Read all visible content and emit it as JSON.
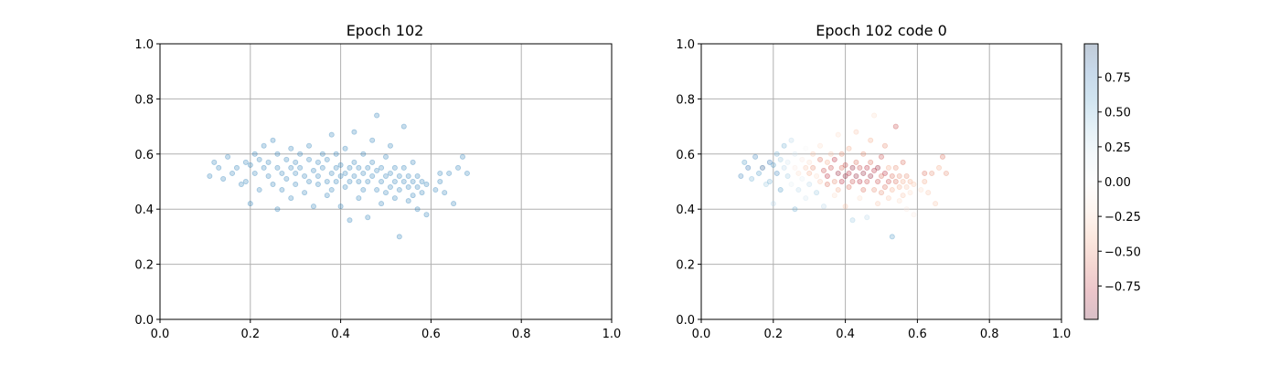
{
  "chart_data": [
    {
      "type": "scatter",
      "title": "Epoch 102",
      "xlim": [
        0,
        1
      ],
      "ylim": [
        0,
        1
      ],
      "xticks": [
        "0.0",
        "0.2",
        "0.4",
        "0.6",
        "0.8",
        "1.0"
      ],
      "yticks": [
        "0.0",
        "0.2",
        "0.4",
        "0.6",
        "0.8",
        "1.0"
      ],
      "grid": true,
      "marker_color": "#1f77b4",
      "marker_alpha": 0.25,
      "points": [
        [
          0.11,
          0.52
        ],
        [
          0.12,
          0.57
        ],
        [
          0.13,
          0.55
        ],
        [
          0.14,
          0.51
        ],
        [
          0.15,
          0.59
        ],
        [
          0.16,
          0.53
        ],
        [
          0.17,
          0.55
        ],
        [
          0.18,
          0.49
        ],
        [
          0.19,
          0.57
        ],
        [
          0.19,
          0.5
        ],
        [
          0.2,
          0.56
        ],
        [
          0.2,
          0.42
        ],
        [
          0.21,
          0.6
        ],
        [
          0.21,
          0.53
        ],
        [
          0.22,
          0.58
        ],
        [
          0.22,
          0.47
        ],
        [
          0.23,
          0.55
        ],
        [
          0.23,
          0.63
        ],
        [
          0.24,
          0.52
        ],
        [
          0.24,
          0.57
        ],
        [
          0.25,
          0.49
        ],
        [
          0.25,
          0.65
        ],
        [
          0.26,
          0.55
        ],
        [
          0.26,
          0.6
        ],
        [
          0.26,
          0.4
        ],
        [
          0.27,
          0.53
        ],
        [
          0.27,
          0.47
        ],
        [
          0.28,
          0.58
        ],
        [
          0.28,
          0.51
        ],
        [
          0.29,
          0.55
        ],
        [
          0.29,
          0.62
        ],
        [
          0.29,
          0.44
        ],
        [
          0.3,
          0.53
        ],
        [
          0.3,
          0.57
        ],
        [
          0.3,
          0.49
        ],
        [
          0.31,
          0.6
        ],
        [
          0.31,
          0.55
        ],
        [
          0.32,
          0.52
        ],
        [
          0.32,
          0.46
        ],
        [
          0.33,
          0.58
        ],
        [
          0.33,
          0.5
        ],
        [
          0.33,
          0.63
        ],
        [
          0.34,
          0.54
        ],
        [
          0.34,
          0.41
        ],
        [
          0.35,
          0.57
        ],
        [
          0.35,
          0.49
        ],
        [
          0.35,
          0.52
        ],
        [
          0.36,
          0.6
        ],
        [
          0.36,
          0.55
        ],
        [
          0.37,
          0.5
        ],
        [
          0.37,
          0.45
        ],
        [
          0.37,
          0.58
        ],
        [
          0.38,
          0.53
        ],
        [
          0.38,
          0.47
        ],
        [
          0.38,
          0.67
        ],
        [
          0.39,
          0.55
        ],
        [
          0.39,
          0.5
        ],
        [
          0.39,
          0.6
        ],
        [
          0.4,
          0.52
        ],
        [
          0.4,
          0.56
        ],
        [
          0.4,
          0.41
        ],
        [
          0.41,
          0.53
        ],
        [
          0.41,
          0.48
        ],
        [
          0.41,
          0.62
        ],
        [
          0.42,
          0.55
        ],
        [
          0.42,
          0.5
        ],
        [
          0.42,
          0.36
        ],
        [
          0.43,
          0.57
        ],
        [
          0.43,
          0.52
        ],
        [
          0.43,
          0.68
        ],
        [
          0.44,
          0.5
        ],
        [
          0.44,
          0.55
        ],
        [
          0.44,
          0.44
        ],
        [
          0.45,
          0.53
        ],
        [
          0.45,
          0.47
        ],
        [
          0.45,
          0.6
        ],
        [
          0.46,
          0.55
        ],
        [
          0.46,
          0.5
        ],
        [
          0.46,
          0.37
        ],
        [
          0.47,
          0.57
        ],
        [
          0.47,
          0.52
        ],
        [
          0.47,
          0.65
        ],
        [
          0.48,
          0.54
        ],
        [
          0.48,
          0.47
        ],
        [
          0.48,
          0.74
        ],
        [
          0.49,
          0.5
        ],
        [
          0.49,
          0.55
        ],
        [
          0.49,
          0.42
        ],
        [
          0.5,
          0.52
        ],
        [
          0.5,
          0.59
        ],
        [
          0.5,
          0.46
        ],
        [
          0.51,
          0.53
        ],
        [
          0.51,
          0.48
        ],
        [
          0.51,
          0.63
        ],
        [
          0.52,
          0.5
        ],
        [
          0.52,
          0.55
        ],
        [
          0.52,
          0.44
        ],
        [
          0.53,
          0.52
        ],
        [
          0.53,
          0.47
        ],
        [
          0.53,
          0.3
        ],
        [
          0.54,
          0.55
        ],
        [
          0.54,
          0.5
        ],
        [
          0.54,
          0.7
        ],
        [
          0.55,
          0.48
        ],
        [
          0.55,
          0.52
        ],
        [
          0.55,
          0.43
        ],
        [
          0.56,
          0.5
        ],
        [
          0.56,
          0.57
        ],
        [
          0.56,
          0.45
        ],
        [
          0.57,
          0.48
        ],
        [
          0.57,
          0.52
        ],
        [
          0.57,
          0.4
        ],
        [
          0.58,
          0.5
        ],
        [
          0.58,
          0.46
        ],
        [
          0.59,
          0.49
        ],
        [
          0.59,
          0.38
        ],
        [
          0.61,
          0.47
        ],
        [
          0.62,
          0.53
        ],
        [
          0.62,
          0.5
        ],
        [
          0.63,
          0.46
        ],
        [
          0.64,
          0.53
        ],
        [
          0.65,
          0.42
        ],
        [
          0.66,
          0.55
        ],
        [
          0.67,
          0.59
        ],
        [
          0.68,
          0.53
        ]
      ]
    },
    {
      "type": "scatter",
      "title": "Epoch 102 code 0",
      "xlim": [
        0,
        1
      ],
      "ylim": [
        0,
        1
      ],
      "xticks": [
        "0.0",
        "0.2",
        "0.4",
        "0.6",
        "0.8",
        "1.0"
      ],
      "yticks": [
        "0.0",
        "0.2",
        "0.4",
        "0.6",
        "0.8",
        "1.0"
      ],
      "grid": true,
      "colormap": "RdBu",
      "marker_alpha": 0.25,
      "color_range": [
        -1,
        1
      ],
      "colorbar_ticks": [
        "0.75",
        "0.50",
        "0.25",
        "0.00",
        "−0.25",
        "−0.50",
        "−0.75"
      ],
      "colorbar_tick_values": [
        0.75,
        0.5,
        0.25,
        0,
        -0.25,
        -0.5,
        -0.75
      ],
      "colorbar_range": [
        -0.99,
        0.99
      ],
      "points": [
        [
          0.11,
          0.52,
          0.7
        ],
        [
          0.12,
          0.57,
          0.6
        ],
        [
          0.13,
          0.55,
          0.8
        ],
        [
          0.14,
          0.51,
          0.5
        ],
        [
          0.15,
          0.59,
          0.7
        ],
        [
          0.16,
          0.53,
          0.6
        ],
        [
          0.17,
          0.55,
          0.9
        ],
        [
          0.18,
          0.49,
          0.4
        ],
        [
          0.19,
          0.57,
          0.8
        ],
        [
          0.19,
          0.5,
          0.5
        ],
        [
          0.2,
          0.56,
          0.6
        ],
        [
          0.2,
          0.42,
          0.3
        ],
        [
          0.21,
          0.6,
          0.5
        ],
        [
          0.21,
          0.53,
          0.7
        ],
        [
          0.22,
          0.58,
          0.4
        ],
        [
          0.22,
          0.47,
          0.6
        ],
        [
          0.23,
          0.55,
          0.3
        ],
        [
          0.23,
          0.63,
          0.5
        ],
        [
          0.24,
          0.52,
          0.4
        ],
        [
          0.24,
          0.57,
          0.2
        ],
        [
          0.25,
          0.49,
          0.1
        ],
        [
          0.25,
          0.65,
          0.3
        ],
        [
          0.26,
          0.55,
          -0.1
        ],
        [
          0.26,
          0.6,
          0.2
        ],
        [
          0.26,
          0.4,
          0.5
        ],
        [
          0.27,
          0.53,
          -0.2
        ],
        [
          0.27,
          0.47,
          0.3
        ],
        [
          0.28,
          0.58,
          -0.1
        ],
        [
          0.28,
          0.51,
          0.1
        ],
        [
          0.29,
          0.55,
          -0.3
        ],
        [
          0.29,
          0.62,
          0.0
        ],
        [
          0.29,
          0.44,
          0.2
        ],
        [
          0.3,
          0.53,
          -0.4
        ],
        [
          0.3,
          0.57,
          -0.2
        ],
        [
          0.3,
          0.49,
          0.3
        ],
        [
          0.31,
          0.6,
          -0.3
        ],
        [
          0.31,
          0.55,
          -0.5
        ],
        [
          0.32,
          0.52,
          -0.2
        ],
        [
          0.32,
          0.46,
          0.4
        ],
        [
          0.33,
          0.58,
          -0.6
        ],
        [
          0.33,
          0.5,
          -0.3
        ],
        [
          0.33,
          0.63,
          -0.2
        ],
        [
          0.34,
          0.54,
          -0.7
        ],
        [
          0.34,
          0.41,
          0.3
        ],
        [
          0.35,
          0.57,
          -0.4
        ],
        [
          0.35,
          0.49,
          -0.6
        ],
        [
          0.35,
          0.52,
          -0.8
        ],
        [
          0.36,
          0.6,
          -0.3
        ],
        [
          0.36,
          0.55,
          -0.7
        ],
        [
          0.37,
          0.5,
          -0.5
        ],
        [
          0.37,
          0.45,
          -0.2
        ],
        [
          0.37,
          0.58,
          -0.8
        ],
        [
          0.38,
          0.53,
          -0.9
        ],
        [
          0.38,
          0.47,
          -0.4
        ],
        [
          0.38,
          0.67,
          -0.2
        ],
        [
          0.39,
          0.55,
          -0.6
        ],
        [
          0.39,
          0.5,
          -0.8
        ],
        [
          0.39,
          0.6,
          -0.5
        ],
        [
          0.4,
          0.52,
          -0.9
        ],
        [
          0.4,
          0.56,
          -0.7
        ],
        [
          0.4,
          0.41,
          -0.3
        ],
        [
          0.41,
          0.53,
          -0.8
        ],
        [
          0.41,
          0.48,
          -0.6
        ],
        [
          0.41,
          0.62,
          -0.4
        ],
        [
          0.42,
          0.55,
          -0.9
        ],
        [
          0.42,
          0.5,
          -0.7
        ],
        [
          0.42,
          0.36,
          0.4
        ],
        [
          0.43,
          0.57,
          -0.6
        ],
        [
          0.43,
          0.52,
          -0.9
        ],
        [
          0.43,
          0.68,
          -0.3
        ],
        [
          0.44,
          0.5,
          -0.8
        ],
        [
          0.44,
          0.55,
          -0.7
        ],
        [
          0.44,
          0.44,
          -0.2
        ],
        [
          0.45,
          0.53,
          -0.9
        ],
        [
          0.45,
          0.47,
          -0.6
        ],
        [
          0.45,
          0.6,
          -0.5
        ],
        [
          0.46,
          0.55,
          -0.8
        ],
        [
          0.46,
          0.5,
          -0.7
        ],
        [
          0.46,
          0.37,
          0.3
        ],
        [
          0.47,
          0.57,
          -0.6
        ],
        [
          0.47,
          0.52,
          -0.9
        ],
        [
          0.47,
          0.65,
          -0.4
        ],
        [
          0.48,
          0.54,
          -0.8
        ],
        [
          0.48,
          0.47,
          -0.5
        ],
        [
          0.48,
          0.74,
          -0.2
        ],
        [
          0.49,
          0.5,
          -0.7
        ],
        [
          0.49,
          0.55,
          -0.9
        ],
        [
          0.49,
          0.42,
          -0.3
        ],
        [
          0.5,
          0.52,
          -0.6
        ],
        [
          0.5,
          0.59,
          -0.7
        ],
        [
          0.5,
          0.46,
          -0.5
        ],
        [
          0.51,
          0.53,
          -0.8
        ],
        [
          0.51,
          0.48,
          -0.6
        ],
        [
          0.51,
          0.63,
          -0.5
        ],
        [
          0.52,
          0.5,
          -0.7
        ],
        [
          0.52,
          0.55,
          -0.4
        ],
        [
          0.52,
          0.44,
          -0.3
        ],
        [
          0.53,
          0.52,
          -0.6
        ],
        [
          0.53,
          0.47,
          -0.4
        ],
        [
          0.53,
          0.3,
          0.6
        ],
        [
          0.54,
          0.55,
          -0.5
        ],
        [
          0.54,
          0.5,
          -0.6
        ],
        [
          0.54,
          0.7,
          -0.7
        ],
        [
          0.55,
          0.48,
          -0.4
        ],
        [
          0.55,
          0.52,
          -0.5
        ],
        [
          0.55,
          0.43,
          -0.2
        ],
        [
          0.56,
          0.5,
          -0.4
        ],
        [
          0.56,
          0.57,
          -0.6
        ],
        [
          0.56,
          0.45,
          -0.3
        ],
        [
          0.57,
          0.48,
          -0.3
        ],
        [
          0.57,
          0.52,
          -0.5
        ],
        [
          0.57,
          0.4,
          -0.1
        ],
        [
          0.58,
          0.5,
          -0.4
        ],
        [
          0.58,
          0.46,
          -0.2
        ],
        [
          0.59,
          0.49,
          -0.3
        ],
        [
          0.59,
          0.38,
          -0.1
        ],
        [
          0.61,
          0.47,
          -0.2
        ],
        [
          0.62,
          0.53,
          -0.6
        ],
        [
          0.62,
          0.5,
          -0.4
        ],
        [
          0.63,
          0.46,
          -0.3
        ],
        [
          0.64,
          0.53,
          -0.5
        ],
        [
          0.65,
          0.42,
          -0.3
        ],
        [
          0.66,
          0.55,
          -0.4
        ],
        [
          0.67,
          0.59,
          -0.6
        ],
        [
          0.68,
          0.53,
          -0.5
        ]
      ]
    }
  ]
}
